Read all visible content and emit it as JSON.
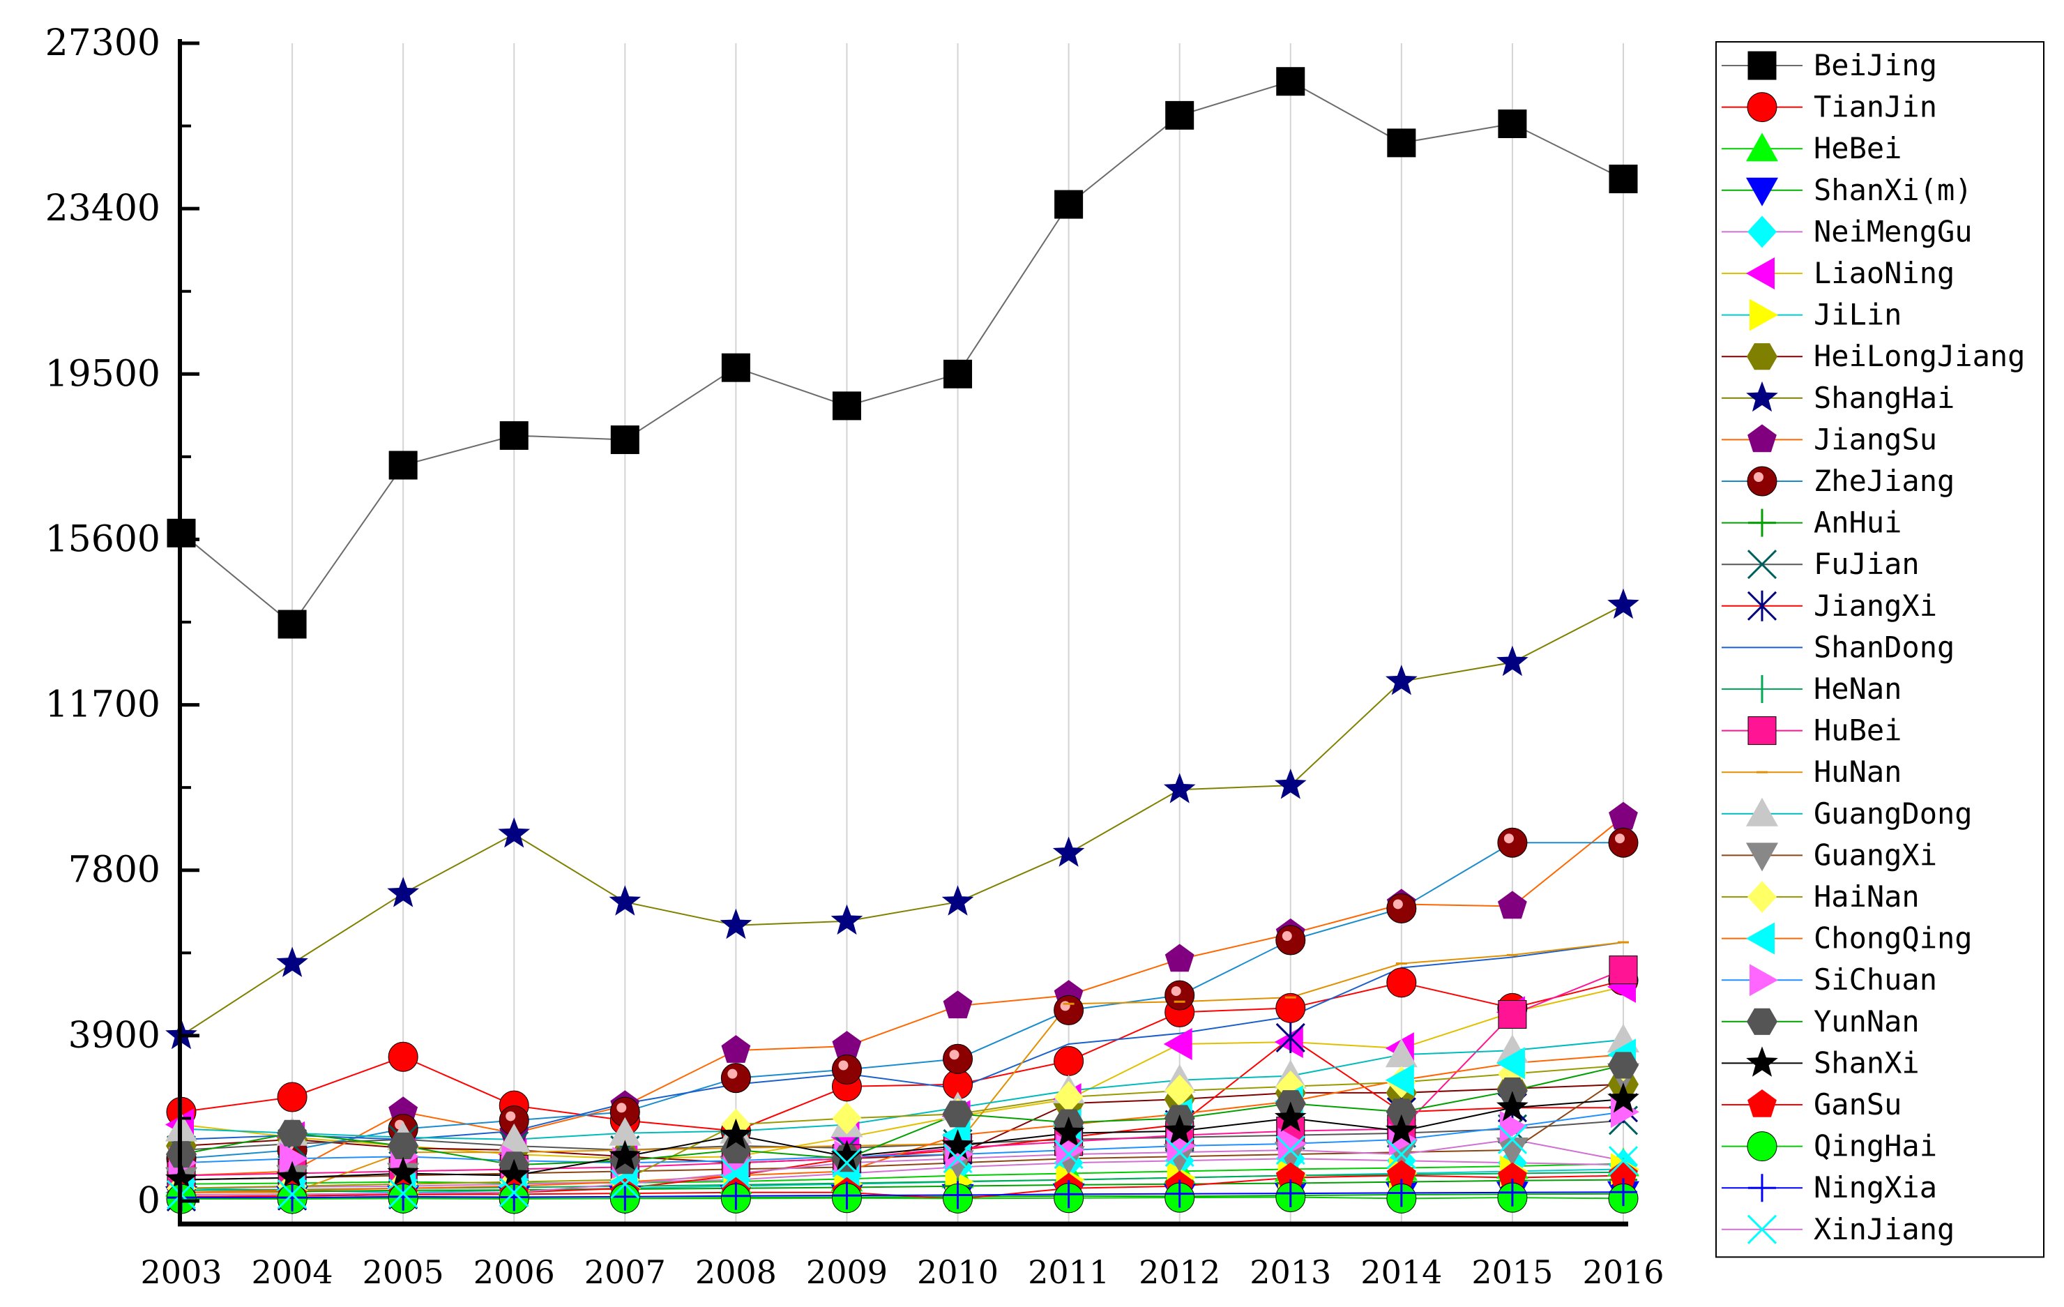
{
  "chart_data": {
    "type": "line",
    "title": "",
    "xlabel": "",
    "ylabel": "",
    "x": [
      2003,
      2004,
      2005,
      2006,
      2007,
      2008,
      2009,
      2010,
      2011,
      2012,
      2013,
      2014,
      2015,
      2016
    ],
    "x_tick_labels": [
      "2003",
      "2004",
      "2005",
      "2006",
      "2007",
      "2008",
      "2009",
      "2010",
      "2011",
      "2012",
      "2013",
      "2014",
      "2015",
      "2016"
    ],
    "yticks": [
      0,
      3900,
      7800,
      11700,
      15600,
      19500,
      23400,
      27300
    ],
    "y_tick_labels": [
      "0",
      "3900",
      "7800",
      "11700",
      "15600",
      "19500",
      "23400",
      "27300"
    ],
    "ylim": [
      0,
      27300
    ],
    "grid": "vertical",
    "legend_position": "right",
    "series": [
      {
        "name": "BeiJing",
        "color": "#000000",
        "line_color": "#6b6b6b",
        "marker": "square",
        "values": [
          15750,
          13600,
          17350,
          18050,
          17950,
          19650,
          18750,
          19500,
          23500,
          25600,
          26400,
          24950,
          25400,
          24100
        ]
      },
      {
        "name": "TianJin",
        "color": "#ff0000",
        "line_color": "#ff0000",
        "marker": "circle",
        "values": [
          2100,
          2450,
          3400,
          2250,
          1900,
          1650,
          2700,
          2750,
          3300,
          4450,
          4550,
          5150,
          4550,
          5200
        ]
      },
      {
        "name": "HeBei",
        "color": "#00ff00",
        "line_color": "#00cc00",
        "marker": "triangle-up",
        "values": [
          400,
          420,
          450,
          420,
          430,
          460,
          520,
          600,
          650,
          700,
          750,
          780,
          820,
          880
        ]
      },
      {
        "name": "ShanXi(m)",
        "color": "#0000ff",
        "line_color": "#00b000",
        "marker": "triangle-down",
        "values": [
          50,
          60,
          70,
          60,
          60,
          80,
          90,
          100,
          120,
          110,
          130,
          150,
          160,
          170
        ]
      },
      {
        "name": "NeiMengGu",
        "color": "#00ffff",
        "line_color": "#d070d0",
        "marker": "diamond",
        "values": [
          300,
          330,
          350,
          400,
          450,
          500,
          650,
          800,
          900,
          950,
          1000,
          950,
          900,
          850
        ]
      },
      {
        "name": "LiaoNing",
        "color": "#ff00ff",
        "line_color": "#e0c000",
        "marker": "triangle-left",
        "values": [
          1800,
          1500,
          1300,
          1100,
          1000,
          1050,
          1500,
          2000,
          2400,
          3700,
          3750,
          3600,
          4450,
          5050
        ]
      },
      {
        "name": "JiLin",
        "color": "#ffff00",
        "line_color": "#00cccc",
        "marker": "triangle-right",
        "values": [
          300,
          250,
          200,
          250,
          300,
          350,
          400,
          450,
          500,
          550,
          600,
          650,
          700,
          750
        ]
      },
      {
        "name": "HeiLongJiang",
        "color": "#808000",
        "line_color": "#800000",
        "marker": "hexagon",
        "values": [
          1300,
          1450,
          1250,
          1200,
          1050,
          900,
          1000,
          1100,
          2300,
          2400,
          2550,
          2550,
          2650,
          2750
        ]
      },
      {
        "name": "ShangHai",
        "color": "#000080",
        "line_color": "#808000",
        "marker": "star",
        "values": [
          3900,
          5600,
          7250,
          8650,
          7050,
          6500,
          6600,
          7050,
          8200,
          9700,
          9800,
          12250,
          12700,
          14050
        ]
      },
      {
        "name": "JiangSu",
        "color": "#800080",
        "line_color": "#ff6600",
        "marker": "pentagon",
        "values": [
          600,
          700,
          2100,
          1600,
          2250,
          3550,
          3650,
          4600,
          4850,
          5700,
          6300,
          7000,
          6950,
          9050
        ]
      },
      {
        "name": "ZheJiang",
        "color": "#8b0000",
        "line_color": "#1a8ccc",
        "marker": "shaded-circle",
        "values": [
          1000,
          1200,
          1700,
          1900,
          2100,
          2900,
          3100,
          3350,
          4500,
          4850,
          6150,
          6900,
          8450,
          8450
        ]
      },
      {
        "name": "AnHui",
        "color": "#00a000",
        "line_color": "#00a000",
        "marker": "plus",
        "values": [
          200,
          220,
          250,
          260,
          280,
          300,
          320,
          350,
          380,
          400,
          420,
          450,
          480,
          500
        ]
      },
      {
        "name": "FuJian",
        "color": "#006060",
        "line_color": "#555555",
        "marker": "x",
        "values": [
          1200,
          1350,
          1450,
          1300,
          1200,
          1300,
          1250,
          1350,
          1450,
          1500,
          1550,
          1600,
          1700,
          1900
        ]
      },
      {
        "name": "JiangXi",
        "color": "#000080",
        "line_color": "#ff0000",
        "marker": "asterisk",
        "values": [
          100,
          120,
          150,
          200,
          300,
          600,
          1000,
          1200,
          1500,
          1800,
          3850,
          2100,
          2200,
          2200
        ]
      },
      {
        "name": "ShanDong",
        "color": "#1a5fcc",
        "line_color": "#1a5fcc",
        "marker": "line",
        "values": [
          1450,
          1550,
          1450,
          1650,
          2300,
          2750,
          3000,
          2650,
          3700,
          3950,
          4350,
          5500,
          5750,
          6100
        ]
      },
      {
        "name": "HeNan",
        "color": "#00aa55",
        "line_color": "#00aa55",
        "marker": "vline",
        "values": [
          250,
          270,
          300,
          320,
          350,
          380,
          420,
          460,
          500,
          550,
          600,
          620,
          650,
          680
        ]
      },
      {
        "name": "HuBei",
        "color": "#ff1493",
        "line_color": "#ff1493",
        "marker": "square",
        "values": [
          600,
          650,
          700,
          750,
          800,
          900,
          1000,
          1250,
          1400,
          1550,
          1650,
          1700,
          4400,
          5450
        ]
      },
      {
        "name": "HuNan",
        "color": "#e09000",
        "line_color": "#e09000",
        "marker": "dash",
        "values": [
          200,
          200,
          1150,
          1150,
          1200,
          1250,
          1300,
          1350,
          4650,
          4700,
          4800,
          5600,
          5800,
          6100
        ]
      },
      {
        "name": "GuangDong",
        "color": "#c8c8c8",
        "line_color": "#00bbbb",
        "marker": "triangle-up",
        "values": [
          1700,
          1600,
          1500,
          1450,
          1600,
          1650,
          1800,
          2200,
          2600,
          2850,
          2950,
          3450,
          3550,
          3800
        ]
      },
      {
        "name": "GuangXi",
        "color": "#888888",
        "line_color": "#8b4513",
        "marker": "triangle-down",
        "values": [
          500,
          550,
          600,
          650,
          700,
          750,
          800,
          900,
          1000,
          1050,
          1100,
          1150,
          1200,
          2950
        ]
      },
      {
        "name": "HaiNan",
        "color": "#ffff66",
        "line_color": "#999900",
        "marker": "diamond",
        "values": [
          300,
          350,
          400,
          450,
          500,
          1800,
          1950,
          2050,
          2450,
          2600,
          2700,
          2800,
          3000,
          3200
        ]
      },
      {
        "name": "ChongQing",
        "color": "#00ffff",
        "line_color": "#ff6600",
        "marker": "triangle-left",
        "values": [
          200,
          250,
          300,
          350,
          450,
          600,
          700,
          1550,
          1800,
          2050,
          2350,
          2850,
          3250,
          3450
        ]
      },
      {
        "name": "SiChuan",
        "color": "#ff66ff",
        "line_color": "#1e90ff",
        "marker": "triangle-right",
        "values": [
          900,
          1000,
          1050,
          950,
          900,
          950,
          1050,
          1100,
          1200,
          1300,
          1350,
          1450,
          1750,
          2100
        ]
      },
      {
        "name": "YunNan",
        "color": "#555555",
        "line_color": "#00a000",
        "marker": "hexagon",
        "values": [
          1100,
          1600,
          1300,
          850,
          950,
          1200,
          1000,
          2050,
          1850,
          1950,
          2300,
          2100,
          2600,
          3200
        ]
      },
      {
        "name": "ShanXi",
        "color": "#000000",
        "line_color": "#000000",
        "marker": "star",
        "values": [
          500,
          550,
          650,
          600,
          1050,
          1550,
          1050,
          1300,
          1600,
          1650,
          1950,
          1650,
          2200,
          2400
        ]
      },
      {
        "name": "GanSu",
        "color": "#ff0000",
        "line_color": "#ff0000",
        "marker": "pentagon",
        "values": [
          100,
          120,
          150,
          160,
          180,
          200,
          200,
          50,
          300,
          350,
          550,
          600,
          550,
          600
        ]
      },
      {
        "name": "QingHai",
        "color": "#00ff00",
        "line_color": "#00cc00",
        "marker": "circle",
        "values": [
          50,
          50,
          60,
          50,
          60,
          60,
          70,
          60,
          70,
          80,
          90,
          60,
          80,
          60
        ]
      },
      {
        "name": "NingXia",
        "color": "#0000ff",
        "line_color": "#0000ff",
        "marker": "plus",
        "values": [
          80,
          80,
          100,
          90,
          100,
          120,
          130,
          140,
          160,
          170,
          180,
          190,
          200,
          210
        ]
      },
      {
        "name": "XinJiang",
        "color": "#00ffff",
        "line_color": "#d070d0",
        "marker": "x",
        "values": [
          150,
          160,
          180,
          200,
          400,
          650,
          900,
          1000,
          1100,
          1150,
          1200,
          1100,
          1450,
          950
        ]
      }
    ]
  }
}
